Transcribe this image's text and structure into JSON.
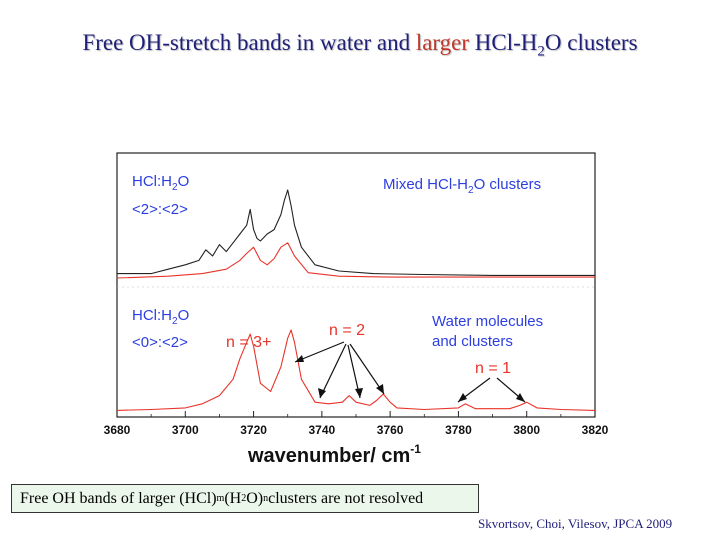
{
  "slide": {
    "title": {
      "part1": "Free OH-stretch bands in water and ",
      "highlight": "larger",
      "part2": " HCl-H",
      "sub": "2",
      "part3": "O clusters"
    },
    "note": {
      "part1": "Free OH bands of larger (HCl)",
      "sub_m": "m",
      "part2": "(H",
      "sub_2": "2",
      "part3": "O)",
      "sub_n": "n",
      "part4": " clusters are not resolved"
    },
    "citation": "Skvortsov, Choi, Vilesov, JPCA 2009"
  },
  "colors": {
    "title": "#1f1f7a",
    "title_highlight": "#c0392b",
    "label_blue": "#2c3ee0",
    "label_red": "#e8332a",
    "trace_black": "#222222",
    "trace_red": "#e8332a",
    "note_bg": "#eaf7ea"
  },
  "chart_data": {
    "type": "line",
    "xlim": [
      3680,
      3820
    ],
    "xticks": [
      3680,
      3700,
      3720,
      3740,
      3760,
      3780,
      3800,
      3820
    ],
    "xlabel": "wavenumber/ cm",
    "xlabel_sup": "-1",
    "panels": [
      {
        "label_line1": "HCl:H",
        "label_line1_sub": "2",
        "label_line1_end": "O",
        "label_line2": "<2>:<2>",
        "annotation": "Mixed HCl-H",
        "annotation_sub": "2",
        "annotation_end": "O clusters",
        "series": [
          {
            "color": "black",
            "x": [
              3680,
              3690,
              3695,
              3700,
              3704,
              3706,
              3708,
              3710,
              3712,
              3714,
              3716,
              3718,
              3719,
              3720,
              3721,
              3722,
              3724,
              3726,
              3728,
              3729,
              3730,
              3731,
              3732,
              3734,
              3738,
              3745,
              3755,
              3770,
              3790,
              3820
            ],
            "y": [
              0.05,
              0.05,
              0.1,
              0.15,
              0.2,
              0.32,
              0.25,
              0.38,
              0.3,
              0.4,
              0.5,
              0.6,
              0.78,
              0.55,
              0.45,
              0.42,
              0.5,
              0.55,
              0.72,
              0.88,
              1.0,
              0.82,
              0.6,
              0.35,
              0.15,
              0.08,
              0.05,
              0.04,
              0.03,
              0.03
            ]
          },
          {
            "color": "red",
            "x": [
              3680,
              3695,
              3705,
              3712,
              3716,
              3718,
              3720,
              3722,
              3724,
              3726,
              3728,
              3730,
              3732,
              3736,
              3745,
              3760,
              3790,
              3820
            ],
            "y": [
              0.0,
              0.02,
              0.05,
              0.1,
              0.2,
              0.28,
              0.35,
              0.2,
              0.15,
              0.22,
              0.35,
              0.4,
              0.25,
              0.06,
              0.02,
              0.01,
              0.01,
              0.01
            ]
          }
        ]
      },
      {
        "label_line1": "HCl:H",
        "label_line1_sub": "2",
        "label_line1_end": "O",
        "label_line2": "<0>:<2>",
        "annotation_line1": "Water molecules",
        "annotation_line2": "and clusters",
        "peak_labels": [
          "n = 3+",
          "n = 2",
          "n = 1"
        ],
        "series": [
          {
            "color": "red",
            "x": [
              3680,
              3690,
              3700,
              3705,
              3710,
              3714,
              3716,
              3718,
              3719,
              3720,
              3722,
              3725,
              3728,
              3730,
              3731,
              3732,
              3734,
              3738,
              3742,
              3746,
              3748,
              3750,
              3754,
              3756,
              3758,
              3760,
              3762,
              3770,
              3780,
              3782,
              3785,
              3795,
              3798,
              3800,
              3803,
              3810,
              3820
            ],
            "y": [
              0.02,
              0.03,
              0.05,
              0.1,
              0.2,
              0.4,
              0.65,
              0.85,
              0.95,
              0.8,
              0.35,
              0.25,
              0.55,
              0.9,
              1.0,
              0.85,
              0.4,
              0.12,
              0.1,
              0.12,
              0.2,
              0.12,
              0.08,
              0.14,
              0.22,
              0.12,
              0.05,
              0.03,
              0.05,
              0.1,
              0.04,
              0.04,
              0.08,
              0.12,
              0.05,
              0.03,
              0.02
            ]
          }
        ]
      }
    ]
  }
}
